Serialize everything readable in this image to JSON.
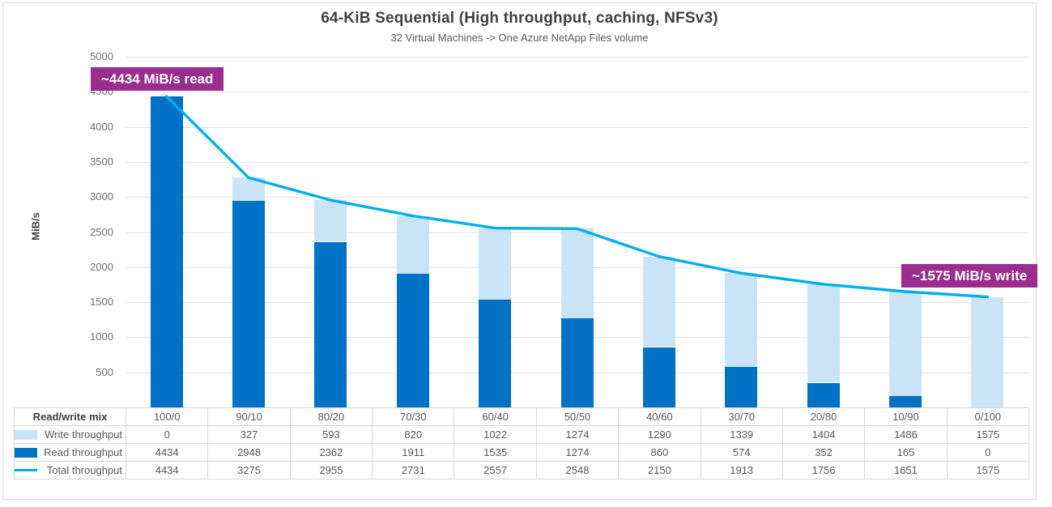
{
  "chart": {
    "title": "64-KiB Sequential (High throughput, caching, NFSv3)",
    "subtitle": "32 Virtual Machines -> One Azure NetApp Files volume",
    "y_axis_title": "MiB/s"
  },
  "chart_data": {
    "type": "combo",
    "title": "64-KiB Sequential (High throughput, caching, NFSv3)",
    "subtitle": "32 Virtual Machines -> One Azure NetApp Files volume",
    "xlabel": "Read/write mix",
    "ylabel": "MiB/s",
    "ylim": [
      0,
      5000
    ],
    "yticks": [
      5000,
      4500,
      4000,
      3500,
      3000,
      2500,
      2000,
      1500,
      1000,
      500
    ],
    "grid": true,
    "legend_position": "data-table-left",
    "categories": [
      "100/0",
      "90/10",
      "80/20",
      "70/30",
      "60/40",
      "50/50",
      "40/60",
      "30/70",
      "20/80",
      "10/90",
      "0/100"
    ],
    "series": [
      {
        "name": "Write throughput",
        "type": "bar-stacked",
        "stack": "top",
        "color": "#C9E4F6",
        "values": [
          0,
          327,
          593,
          820,
          1022,
          1274,
          1290,
          1339,
          1404,
          1486,
          1575
        ]
      },
      {
        "name": "Read throughput",
        "type": "bar-stacked",
        "stack": "bottom",
        "color": "#0072C6",
        "values": [
          4434,
          2948,
          2362,
          1911,
          1535,
          1274,
          860,
          574,
          352,
          165,
          0
        ]
      },
      {
        "name": "Total throughput",
        "type": "line",
        "color": "#00AEEF",
        "values": [
          4434,
          3275,
          2955,
          2731,
          2557,
          2548,
          2150,
          1913,
          1756,
          1651,
          1575
        ]
      }
    ],
    "annotations": [
      {
        "text": "~4434 MiB/s read",
        "bg": "#9B2D90",
        "text_color": "#FFFFFF"
      },
      {
        "text": "~1575 MiB/s write",
        "bg": "#9B2D90",
        "text_color": "#FFFFFF"
      }
    ]
  },
  "table": {
    "corner_label": "Read/write mix"
  }
}
